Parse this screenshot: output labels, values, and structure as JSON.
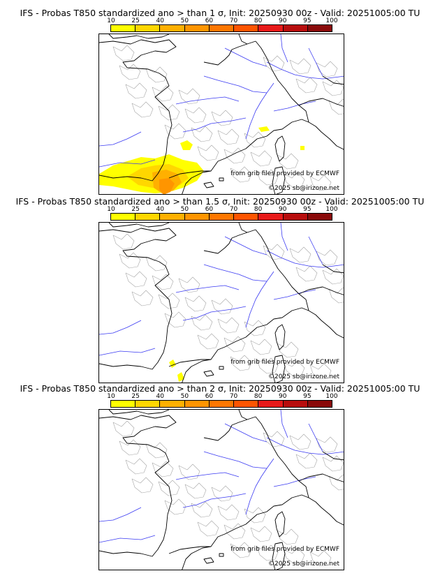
{
  "legend": {
    "ticks": [
      "10",
      "25",
      "40",
      "50",
      "60",
      "70",
      "80",
      "90",
      "95",
      "100"
    ],
    "colors": [
      "#ffff00",
      "#ffd700",
      "#ffb000",
      "#ff9500",
      "#ff7700",
      "#ff5500",
      "#e81a1a",
      "#b80d0d",
      "#8a0a0a"
    ]
  },
  "panels": [
    {
      "title": "IFS - Probas T850  standardized ano > than 1 σ, Init: 20250930 00z - Valid: 20251005:00 TU",
      "credit": "from grib files provided by ECMWF",
      "copyright": "©2025 sb@irizone.net"
    },
    {
      "title": "IFS - Probas T850  standardized ano > than 1.5 σ, Init: 20250930 00z - Valid: 20251005:00 TU",
      "credit": "from grib files provided by ECMWF",
      "copyright": "©2025 sb@irizone.net"
    },
    {
      "title": "IFS - Probas T850  standardized ano > than 2 σ, Init: 20250930 00z - Valid: 20251005:00 TU",
      "credit": "from grib files provided by ECMWF",
      "copyright": "©2025 sb@irizone.net"
    }
  ]
}
